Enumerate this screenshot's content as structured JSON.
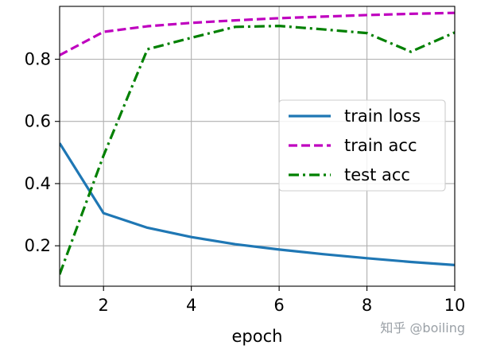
{
  "chart_data": {
    "type": "line",
    "xlabel": "epoch",
    "ylabel": "",
    "xlim": [
      1,
      10
    ],
    "ylim": [
      0.07,
      0.97
    ],
    "xticks": [
      2,
      4,
      6,
      8,
      10
    ],
    "yticks": [
      0.2,
      0.4,
      0.6,
      0.8
    ],
    "ytick_labels": [
      "0.2",
      "0.4",
      "0.6",
      "0.8"
    ],
    "grid": true,
    "legend_position": "center-right",
    "series": [
      {
        "name": "train loss",
        "color": "#1f77b4",
        "dash": "solid",
        "x": [
          1,
          2,
          3,
          4,
          5,
          6,
          7,
          8,
          9,
          10
        ],
        "y": [
          0.53,
          0.305,
          0.258,
          0.228,
          0.205,
          0.188,
          0.173,
          0.16,
          0.148,
          0.138
        ]
      },
      {
        "name": "train acc",
        "color": "#bf00bf",
        "dash": "dashed",
        "x": [
          1,
          2,
          3,
          4,
          5,
          6,
          7,
          8,
          9,
          10
        ],
        "y": [
          0.813,
          0.888,
          0.906,
          0.917,
          0.925,
          0.932,
          0.937,
          0.942,
          0.946,
          0.949
        ]
      },
      {
        "name": "test acc",
        "color": "#008000",
        "dash": "dashdot",
        "x": [
          1,
          2,
          3,
          4,
          5,
          6,
          7,
          8,
          9,
          10
        ],
        "y": [
          0.108,
          0.49,
          0.832,
          0.869,
          0.904,
          0.907,
          0.896,
          0.884,
          0.824,
          0.886
        ]
      }
    ]
  },
  "watermark": "知乎 @boiling"
}
